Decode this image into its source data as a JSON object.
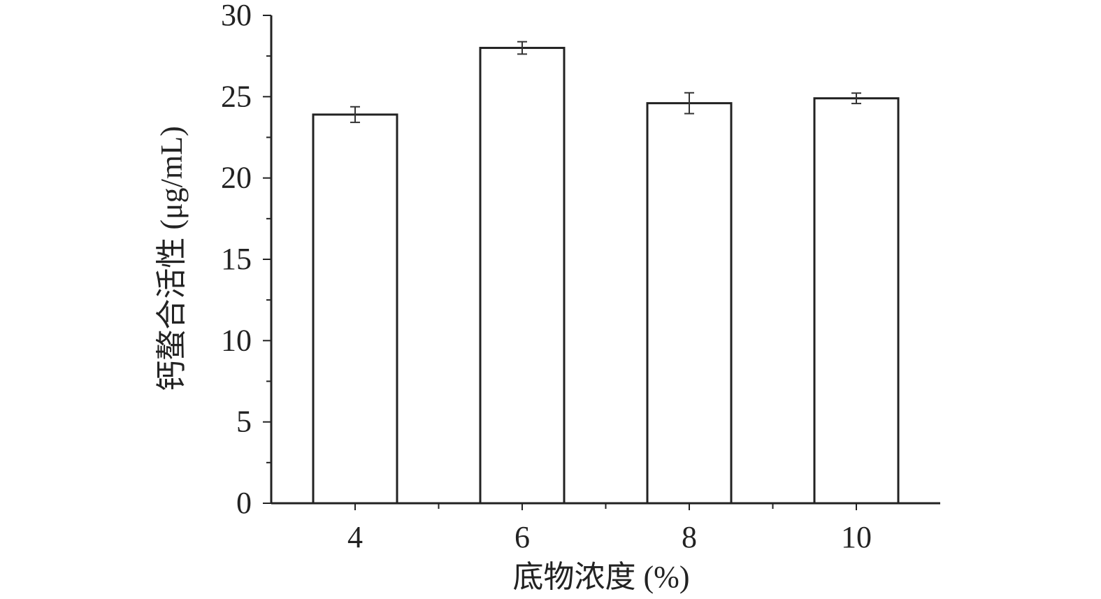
{
  "chart_data": {
    "type": "bar",
    "categories": [
      "4",
      "6",
      "8",
      "10"
    ],
    "values": [
      23.9,
      28.0,
      24.6,
      24.9
    ],
    "errors": [
      0.48,
      0.38,
      0.64,
      0.32
    ],
    "xlabel": "底物浓度 (%)",
    "ylabel": "钙螯合活性 (μg/mL)",
    "ylim": [
      0,
      30
    ],
    "yticks": [
      0,
      5,
      10,
      15,
      20,
      25,
      30
    ],
    "grid": false,
    "bar_fill": "#ffffff",
    "bar_stroke": "#222222"
  }
}
